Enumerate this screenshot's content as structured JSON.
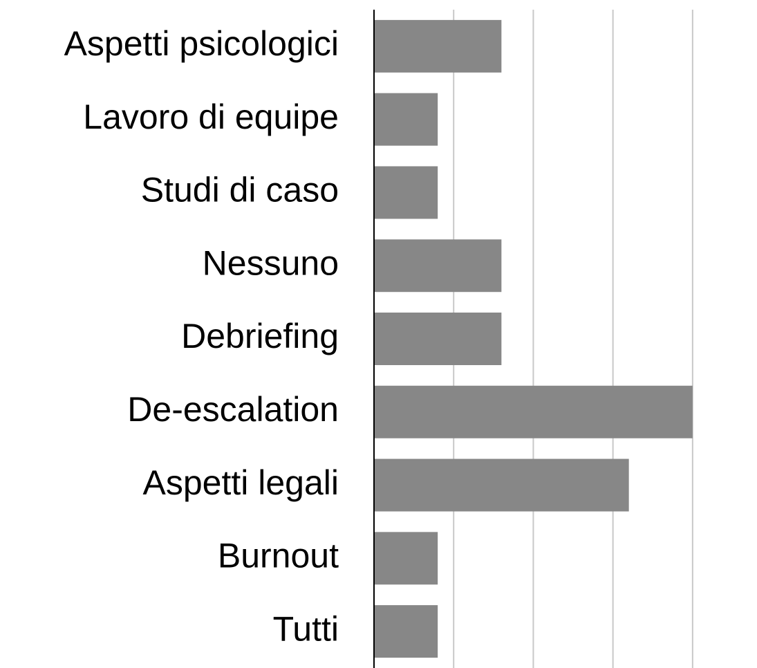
{
  "chart_data": {
    "type": "barh",
    "categories": [
      "Aspetti psicologici",
      "Lavoro di equipe",
      "Studi di caso",
      "Nessuno",
      "Debriefing",
      "De-escalation",
      "Aspetti legali",
      "Burnout",
      "Tutti"
    ],
    "values": [
      8,
      4,
      4,
      8,
      8,
      20,
      16,
      4,
      4
    ],
    "color": "#878787",
    "xlim": [
      0,
      24
    ],
    "xticks": [
      0,
      5,
      10,
      15,
      20
    ],
    "grid": true
  }
}
